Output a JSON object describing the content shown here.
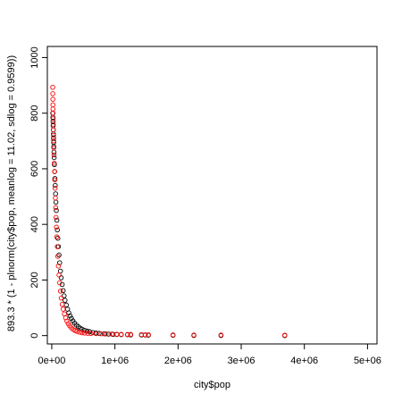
{
  "chart_data": {
    "type": "scatter",
    "title": "",
    "xlabel": "city$pop",
    "ylabel": "893.3 * (1 - plnorm(city$pop, meanlog = 11.02, sdlog = 0.9599))",
    "xlim": [
      -70000,
      5150000
    ],
    "ylim": [
      -30,
      1040
    ],
    "x_ticks": [
      0,
      1000000,
      2000000,
      3000000,
      4000000,
      5000000
    ],
    "x_tick_labels": [
      "0e+00",
      "1e+06",
      "2e+06",
      "3e+06",
      "4e+06",
      "5e+06"
    ],
    "y_ticks": [
      0,
      200,
      400,
      600,
      800,
      1000
    ],
    "y_tick_labels": [
      "0",
      "200",
      "400",
      "600",
      "800",
      "1000"
    ],
    "grid": false,
    "legend": "none",
    "series": [
      {
        "color": "#000000",
        "marker": "open-circle",
        "x": [
          15000,
          18000,
          20000,
          22000,
          24000,
          26000,
          28000,
          30000,
          32000,
          35000,
          38000,
          42000,
          46000,
          50000,
          55000,
          60000,
          66000,
          72000,
          80000,
          88000,
          96000,
          105000,
          115000,
          125000,
          138000,
          150000,
          165000,
          180000,
          195000,
          210000,
          230000,
          250000,
          270000,
          290000,
          310000,
          335000,
          360000,
          390000,
          420000,
          450000,
          480000,
          520000,
          560000,
          600000,
          650000,
          700000,
          750000,
          830000,
          900000,
          970000,
          1030000,
          1100000,
          1200000,
          1250000,
          1420000,
          1480000,
          1530000,
          1920000,
          2250000,
          2680000,
          3690000
        ],
        "y": [
          800,
          785,
          770,
          755,
          740,
          725,
          710,
          695,
          680,
          660,
          640,
          615,
          590,
          565,
          540,
          510,
          480,
          450,
          415,
          380,
          350,
          320,
          290,
          262,
          232,
          208,
          184,
          162,
          143,
          127,
          110,
          95,
          82,
          71,
          62,
          53,
          45,
          38,
          32,
          27,
          23,
          19,
          16,
          14,
          11,
          9.5,
          8,
          6.5,
          5.5,
          4.5,
          4,
          3.5,
          3,
          2.5,
          2,
          2,
          1.5,
          1,
          0.5,
          0.3,
          0.1
        ]
      },
      {
        "color": "#ff0000",
        "marker": "open-circle",
        "x": [
          15000,
          16000,
          17000,
          18000,
          19000,
          20000,
          22000,
          24000,
          26000,
          28000,
          30000,
          33000,
          36000,
          40000,
          44000,
          48000,
          52000,
          57000,
          62000,
          68000,
          74000,
          80000,
          88000,
          96000,
          105000,
          115000,
          125000,
          138000,
          150000,
          165000,
          180000,
          200000,
          220000,
          240000,
          260000,
          285000,
          310000,
          340000,
          370000,
          400000,
          440000,
          480000,
          520000,
          570000,
          620000,
          700000,
          780000,
          860000,
          950000,
          1030000,
          1100000,
          1200000,
          1250000,
          1420000,
          1480000,
          1530000,
          1920000,
          2250000,
          2680000,
          3690000
        ],
        "y": [
          893,
          870,
          850,
          830,
          815,
          800,
          780,
          760,
          740,
          720,
          700,
          675,
          650,
          620,
          590,
          560,
          530,
          495,
          460,
          425,
          390,
          355,
          320,
          285,
          250,
          218,
          190,
          160,
          135,
          112,
          95,
          78,
          64,
          52,
          43,
          35,
          28,
          22,
          18,
          15,
          12,
          10,
          9,
          8,
          7.5,
          7,
          6.5,
          6,
          5.5,
          5,
          4.5,
          4,
          4,
          3.5,
          3,
          3,
          2.5,
          2,
          2,
          1.5
        ]
      }
    ]
  }
}
